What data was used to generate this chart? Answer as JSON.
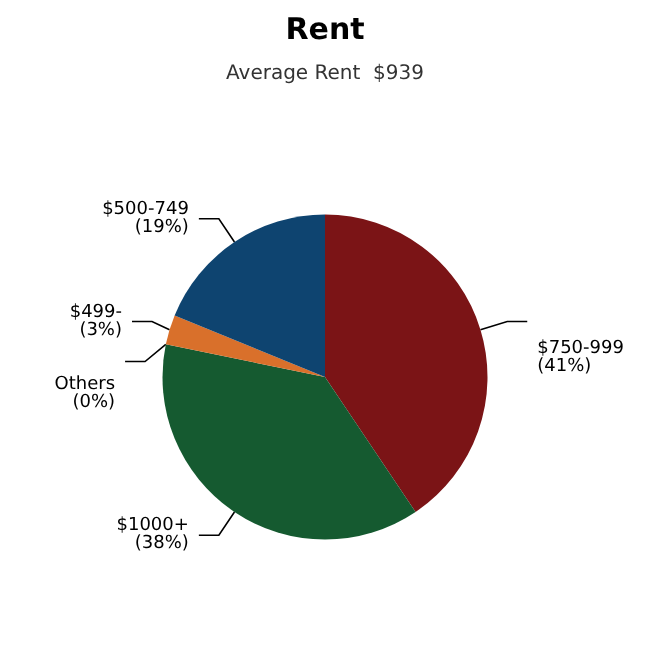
{
  "chart_data": {
    "type": "pie",
    "title": "Rent",
    "subtitle": "Average Rent  $939",
    "categories": [
      "$750-999",
      "$1000+",
      "Others",
      "$499-",
      "$500-749"
    ],
    "values": [
      41,
      38,
      0,
      3,
      19
    ],
    "value_labels": [
      "(41%)",
      "(38%)",
      "(0%)",
      "(3%)",
      "(19%)"
    ],
    "colors": [
      "#7b1416",
      "#155a30",
      "#8a8a8a",
      "#d9702b",
      "#0e4470"
    ]
  }
}
